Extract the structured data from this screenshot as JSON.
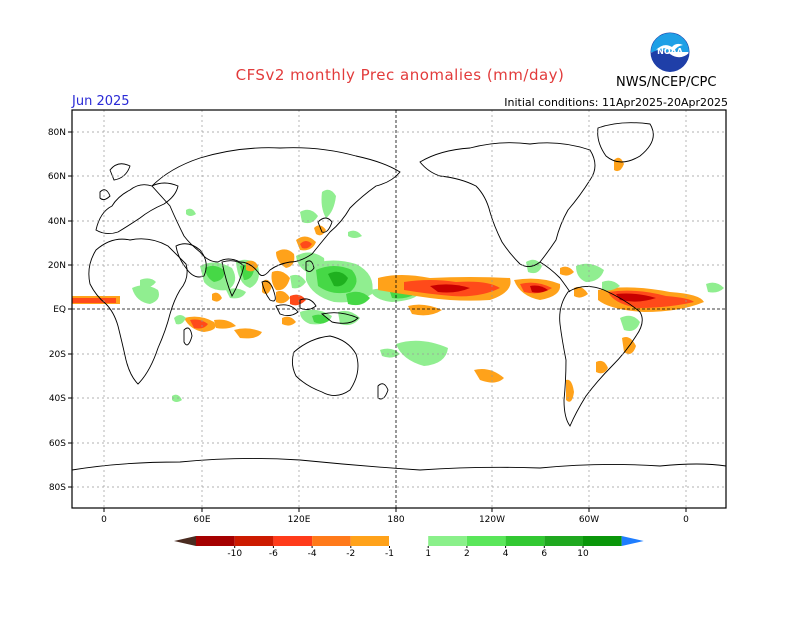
{
  "header": {
    "title": "CFSv2 monthly Prec anomalies (mm/day)",
    "month": "Jun 2025",
    "initial_conditions": "Initial conditions: 11Apr2025-20Apr2025",
    "agency": "NWS/NCEP/CPC",
    "logo_text": "NOAA"
  },
  "axes": {
    "lat_labels": [
      "80N",
      "60N",
      "40N",
      "20N",
      "EQ",
      "20S",
      "40S",
      "60S",
      "80S"
    ],
    "lon_labels": [
      "0",
      "60E",
      "120E",
      "180",
      "120W",
      "60W",
      "0"
    ]
  },
  "colorbar": {
    "labels": [
      "-10",
      "-6",
      "-4",
      "-2",
      "-1",
      "1",
      "2",
      "4",
      "6",
      "10"
    ],
    "colors": [
      "#4a2b20",
      "#a50000",
      "#cc1a00",
      "#ff3b1a",
      "#ff7a1a",
      "#ffa21a",
      "#ffffff",
      "#8af08a",
      "#5ae65a",
      "#32c832",
      "#1fa81f",
      "#0a960a",
      "#1e7dff"
    ]
  },
  "colors": {
    "dry_strong": "#c80000",
    "dry_moderate": "#ff4a1a",
    "dry_weak": "#ffa21a",
    "wet_weak": "#90ee90",
    "wet_moderate": "#46d846",
    "wet_strong": "#1fb01f"
  }
}
